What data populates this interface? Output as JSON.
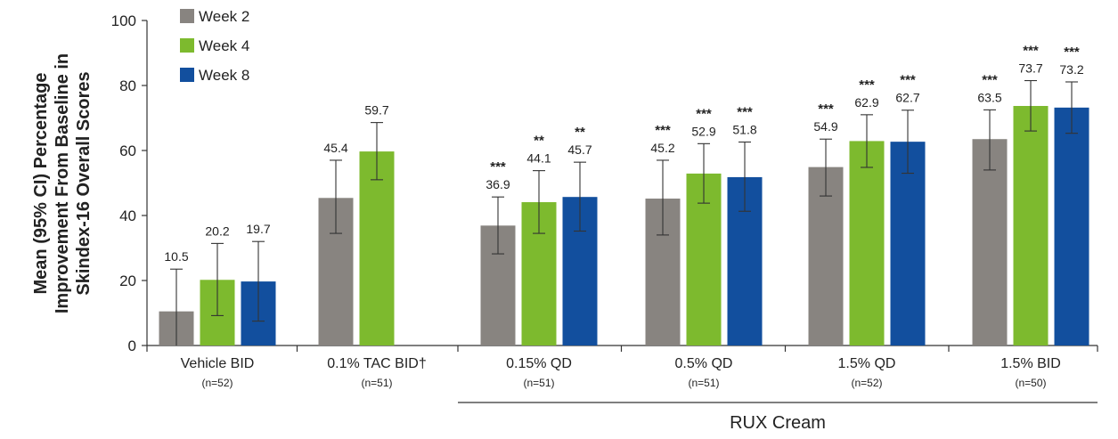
{
  "chart_data": {
    "type": "bar",
    "ylabel": [
      "Mean (95% CI) Percentage",
      "Improvement From Baseline in",
      "Skindex-16 Overall Scores"
    ],
    "ylim": [
      0,
      100
    ],
    "yticks": [
      "0",
      "20",
      "40",
      "60",
      "80",
      "100"
    ],
    "grid": false,
    "legend_position": "top-left",
    "categories": [
      {
        "label": "Vehicle BID",
        "n": "(n=52)"
      },
      {
        "label": "0.1% TAC BID†",
        "n": "(n=51)"
      },
      {
        "label": "0.15% QD",
        "n": "(n=51)"
      },
      {
        "label": "0.5% QD",
        "n": "(n=51)"
      },
      {
        "label": "1.5% QD",
        "n": "(n=52)"
      },
      {
        "label": "1.5% BID",
        "n": "(n=50)"
      }
    ],
    "series": [
      {
        "name": "Week 2",
        "color": "#888480",
        "values": [
          10.5,
          45.4,
          36.9,
          45.2,
          54.9,
          63.5
        ],
        "value_labels": [
          "10.5",
          "45.4",
          "36.9",
          "45.2",
          "54.9",
          "63.5"
        ],
        "ci_low": [
          0,
          34.5,
          28.2,
          34.0,
          46.0,
          54.0
        ],
        "ci_high": [
          23.5,
          57.0,
          45.7,
          57.0,
          63.5,
          72.5
        ],
        "significance": [
          "",
          "",
          "***",
          "***",
          "***",
          "***"
        ]
      },
      {
        "name": "Week 4",
        "color": "#7dba2e",
        "values": [
          20.2,
          59.7,
          44.1,
          52.9,
          62.9,
          73.7
        ],
        "value_labels": [
          "20.2",
          "59.7",
          "44.1",
          "52.9",
          "62.9",
          "73.7"
        ],
        "ci_low": [
          9.2,
          51.0,
          34.5,
          43.8,
          54.8,
          66.0
        ],
        "ci_high": [
          31.4,
          68.6,
          53.8,
          62.1,
          71.0,
          81.5
        ],
        "significance": [
          "",
          "",
          "**",
          "***",
          "***",
          "***"
        ]
      },
      {
        "name": "Week 8",
        "color": "#124f9e",
        "values": [
          19.7,
          null,
          45.7,
          51.8,
          62.7,
          73.2
        ],
        "value_labels": [
          "19.7",
          "",
          "45.7",
          "51.8",
          "62.7",
          "73.2"
        ],
        "ci_low": [
          7.5,
          null,
          35.2,
          41.3,
          53.0,
          65.3
        ],
        "ci_high": [
          32.0,
          null,
          56.4,
          62.6,
          72.4,
          81.1
        ],
        "significance": [
          "",
          "",
          "**",
          "***",
          "***",
          "***"
        ]
      }
    ],
    "group_annotation": {
      "label": "RUX Cream",
      "spans_categories": [
        "0.15% QD",
        "0.5% QD",
        "1.5% QD",
        "1.5% BID"
      ]
    }
  }
}
